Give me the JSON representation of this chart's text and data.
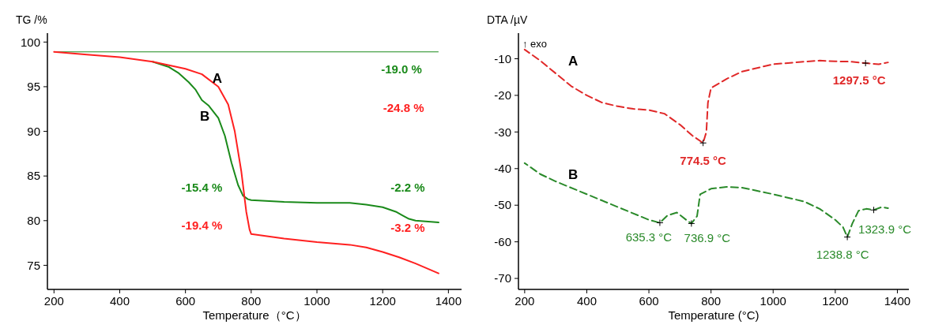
{
  "chart_data": [
    {
      "type": "line",
      "ylabel": "TG /%",
      "xlabel": "Temperature（°C）",
      "xlim": [
        180,
        1440
      ],
      "ylim": [
        72.3,
        101
      ],
      "xticks": [
        200,
        400,
        600,
        800,
        1000,
        1200,
        1400
      ],
      "yticks": [
        75,
        80,
        85,
        90,
        95,
        100
      ],
      "marker": "none",
      "line_style": "solid",
      "series": [
        {
          "color": "#1a8a1a",
          "x": [
            500,
            550,
            580,
            610,
            630,
            650,
            670,
            700,
            720,
            740,
            760,
            775,
            790,
            800,
            900,
            1000,
            1100,
            1150,
            1200,
            1240,
            1260,
            1280,
            1300,
            1370
          ],
          "values": [
            97.8,
            97.2,
            96.5,
            95.5,
            94.7,
            93.5,
            92.9,
            91.5,
            89.5,
            86.5,
            84.0,
            82.8,
            82.4,
            82.3,
            82.1,
            82.0,
            82.0,
            81.8,
            81.5,
            81.0,
            80.6,
            80.2,
            80.0,
            79.8
          ]
        },
        {
          "color": "#ff2020",
          "x": [
            200,
            300,
            400,
            500,
            550,
            600,
            650,
            700,
            730,
            750,
            770,
            785,
            795,
            800,
            900,
            1000,
            1100,
            1150,
            1200,
            1250,
            1300,
            1370
          ],
          "values": [
            98.9,
            98.6,
            98.3,
            97.8,
            97.4,
            97.0,
            96.4,
            95.0,
            93.0,
            90.0,
            85.5,
            81.0,
            79.0,
            78.5,
            78.0,
            77.6,
            77.3,
            77.0,
            76.5,
            75.9,
            75.2,
            74.1
          ]
        }
      ],
      "ref_lines": [
        {
          "axis": "y",
          "value": 98.9,
          "color": "#1a8a1a"
        }
      ],
      "annotations": [
        "A",
        "B",
        "-19.0 %",
        "-24.8 %",
        "-15.4 %",
        "-19.4 %",
        "-2.2 %",
        "-3.2 %"
      ]
    },
    {
      "type": "line",
      "ylabel": "DTA /µV",
      "xlabel": "Temperature (°C)",
      "xlim": [
        180,
        1437
      ],
      "ylim": [
        -73,
        -3
      ],
      "xticks": [
        200,
        400,
        600,
        800,
        1000,
        1200,
        1400
      ],
      "yticks": [
        -70,
        -60,
        -50,
        -40,
        -30,
        -20,
        -10
      ],
      "marker": "none",
      "line_style": "dashed",
      "series": [
        {
          "color": "#e02828",
          "x": [
            200,
            250,
            300,
            350,
            400,
            450,
            500,
            550,
            600,
            650,
            700,
            740,
            774.5,
            785,
            790,
            800,
            850,
            900,
            1000,
            1100,
            1150,
            1200,
            1250,
            1297.5,
            1340,
            1370
          ],
          "values": [
            -7.5,
            -10.5,
            -14,
            -17.5,
            -20,
            -22,
            -23,
            -23.7,
            -24,
            -25,
            -28,
            -31,
            -33,
            -30,
            -22,
            -18,
            -15.5,
            -13.5,
            -11.5,
            -10.8,
            -10.5,
            -10.7,
            -10.8,
            -11.2,
            -11.5,
            -11
          ]
        },
        {
          "color": "#2a8a2a",
          "x": [
            200,
            250,
            300,
            400,
            500,
            600,
            635.3,
            660,
            690,
            720,
            736.9,
            755,
            765,
            800,
            850,
            900,
            1000,
            1100,
            1150,
            1200,
            1225,
            1238.8,
            1255,
            1275,
            1300,
            1323.9,
            1350,
            1370
          ],
          "values": [
            -38.5,
            -41.5,
            -43.5,
            -47,
            -50.5,
            -54,
            -54.8,
            -52.8,
            -52,
            -54,
            -55,
            -53,
            -47,
            -45.5,
            -45,
            -45.2,
            -47,
            -49,
            -51,
            -54,
            -56,
            -58.7,
            -55,
            -51.5,
            -51,
            -51.3,
            -50.5,
            -50.8
          ]
        }
      ],
      "annotations": [
        "↑ exo",
        "A",
        "B",
        {
          "text": "774.5 °C",
          "x": 774.5,
          "y": -33
        },
        {
          "text": "1297.5 °C",
          "x": 1297.5,
          "y": -11.2
        },
        {
          "text": "635.3 °C",
          "x": 635.3,
          "y": -54.8
        },
        {
          "text": "736.9 °C",
          "x": 736.9,
          "y": -55
        },
        {
          "text": "1238.8 °C",
          "x": 1238.8,
          "y": -58.7
        },
        {
          "text": "1323.9 °C",
          "x": 1323.9,
          "y": -51.3
        }
      ]
    }
  ]
}
